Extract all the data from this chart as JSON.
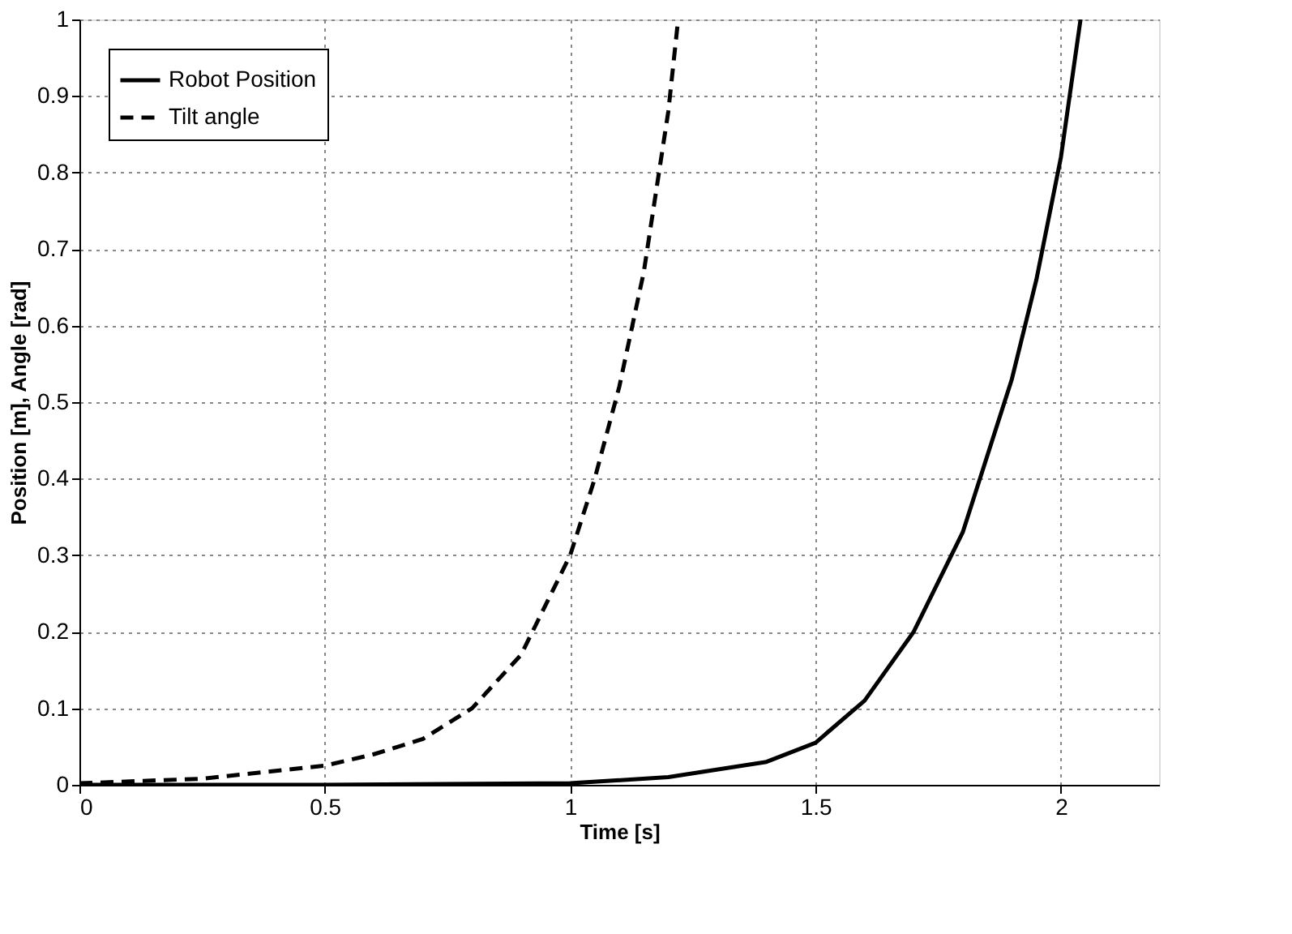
{
  "chart_data": {
    "type": "line",
    "xlabel": "Time [s]",
    "ylabel": "Position [m], Angle [rad]",
    "xlim": [
      0,
      2.2
    ],
    "ylim": [
      0,
      1
    ],
    "xticks": [
      0,
      0.5,
      1,
      1.5,
      2
    ],
    "yticks": [
      0,
      0.1,
      0.2,
      0.3,
      0.4,
      0.5,
      0.6,
      0.7,
      0.8,
      0.9,
      1
    ],
    "grid": true,
    "legend": "top left",
    "marker": "none",
    "series": [
      {
        "name": "Robot Position",
        "color": "#000000",
        "line_style": "solid",
        "x": [
          0,
          0.5,
          1.0,
          1.2,
          1.4,
          1.5,
          1.6,
          1.7,
          1.8,
          1.9,
          1.95,
          2.0,
          2.04
        ],
        "values": [
          0,
          0,
          0.002,
          0.01,
          0.03,
          0.055,
          0.11,
          0.2,
          0.33,
          0.53,
          0.66,
          0.82,
          1.0
        ]
      },
      {
        "name": "Tilt angle",
        "color": "#000000",
        "line_style": "dashed",
        "x": [
          0,
          0.25,
          0.5,
          0.6,
          0.7,
          0.8,
          0.9,
          1.0,
          1.05,
          1.1,
          1.15,
          1.2,
          1.22
        ],
        "values": [
          0.002,
          0.008,
          0.025,
          0.04,
          0.06,
          0.1,
          0.17,
          0.3,
          0.4,
          0.52,
          0.67,
          0.88,
          1.0
        ]
      }
    ]
  }
}
